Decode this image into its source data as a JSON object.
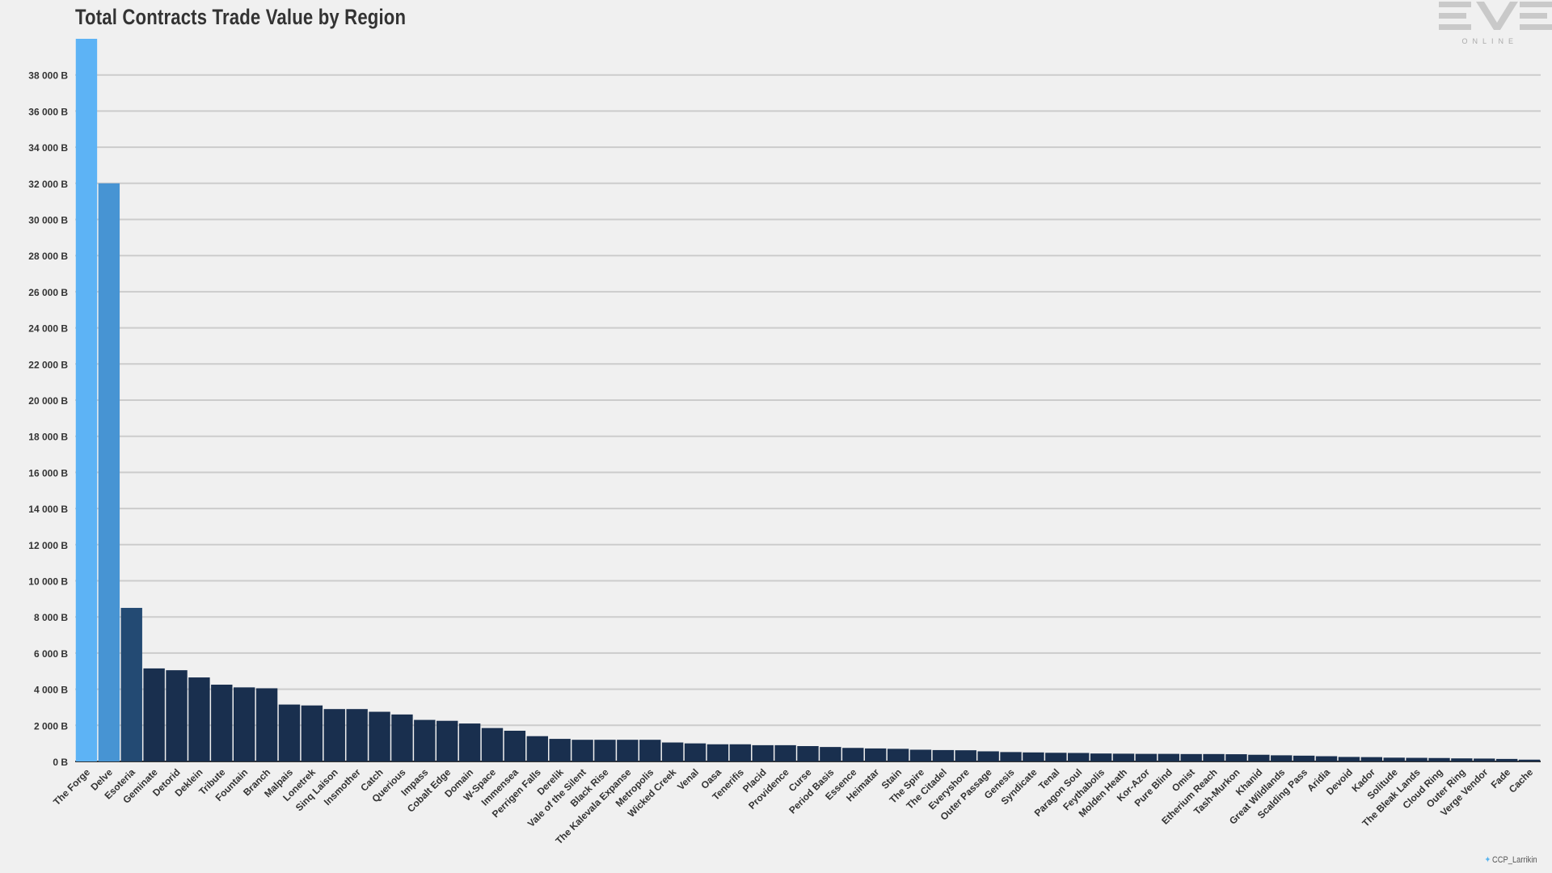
{
  "chart_data": {
    "type": "bar",
    "title": "Total Contracts Trade Value by Region",
    "xlabel": "",
    "ylabel": "",
    "ylim": [
      0,
      40000
    ],
    "yticks": [
      0,
      2000,
      4000,
      6000,
      8000,
      10000,
      12000,
      14000,
      16000,
      18000,
      20000,
      22000,
      24000,
      26000,
      28000,
      30000,
      32000,
      34000,
      36000,
      38000
    ],
    "ytick_labels": [
      "0 B",
      "2 000 B",
      "4 000 B",
      "6 000 B",
      "8 000 B",
      "10 000 B",
      "12 000 B",
      "14 000 B",
      "16 000 B",
      "18 000 B",
      "20 000 B",
      "22 000 B",
      "24 000 B",
      "26 000 B",
      "28 000 B",
      "30 000 B",
      "32 000 B",
      "34 000 B",
      "36 000 B",
      "38 000 B"
    ],
    "grid": true,
    "legend": "none",
    "categories": [
      "The Forge",
      "Delve",
      "Esoteria",
      "Geminate",
      "Detorid",
      "Deklein",
      "Tribute",
      "Fountain",
      "Branch",
      "Malpais",
      "Lonetrek",
      "Sinq Laison",
      "Insmother",
      "Catch",
      "Querious",
      "Impass",
      "Cobalt Edge",
      "Domain",
      "W-Space",
      "Immensea",
      "Perrigen Falls",
      "Derelik",
      "Vale of the Silent",
      "Black Rise",
      "The Kalevala Expanse",
      "Metropolis",
      "Wicked Creek",
      "Venal",
      "Oasa",
      "Tenerifis",
      "Placid",
      "Providence",
      "Curse",
      "Period Basis",
      "Essence",
      "Heimatar",
      "Stain",
      "The Spire",
      "The Citadel",
      "Everyshore",
      "Outer Passage",
      "Genesis",
      "Syndicate",
      "Tenal",
      "Paragon Soul",
      "Feythabolis",
      "Molden Heath",
      "Kor-Azor",
      "Pure Blind",
      "Omist",
      "Etherium Reach",
      "Tash-Murkon",
      "Khanid",
      "Great Wildlands",
      "Scalding Pass",
      "Aridia",
      "Devoid",
      "Kador",
      "Solitude",
      "The Bleak Lands",
      "Cloud Ring",
      "Outer Ring",
      "Verge Vendor",
      "Fade",
      "Cache"
    ],
    "values": [
      40000,
      32000,
      8500,
      5150,
      5050,
      4650,
      4250,
      4100,
      4050,
      3150,
      3100,
      2900,
      2900,
      2750,
      2600,
      2300,
      2250,
      2100,
      1850,
      1700,
      1400,
      1250,
      1200,
      1200,
      1200,
      1200,
      1050,
      1000,
      950,
      950,
      900,
      900,
      850,
      800,
      750,
      720,
      700,
      650,
      630,
      620,
      560,
      520,
      500,
      480,
      470,
      440,
      430,
      420,
      420,
      410,
      410,
      400,
      370,
      340,
      320,
      290,
      250,
      240,
      210,
      200,
      190,
      170,
      160,
      140,
      100
    ],
    "colors": {
      "first": "#5db3f5",
      "second": "#4794d3",
      "third": "#234a73",
      "rest": "#192f4e",
      "grid": "#cccccc",
      "axis": "#333333"
    }
  },
  "brand": {
    "logo_main": "EVE",
    "logo_sub": "ONLINE",
    "credit_icon": "twitter-bird-icon",
    "credit_handle": "CCP_Larrikin"
  }
}
